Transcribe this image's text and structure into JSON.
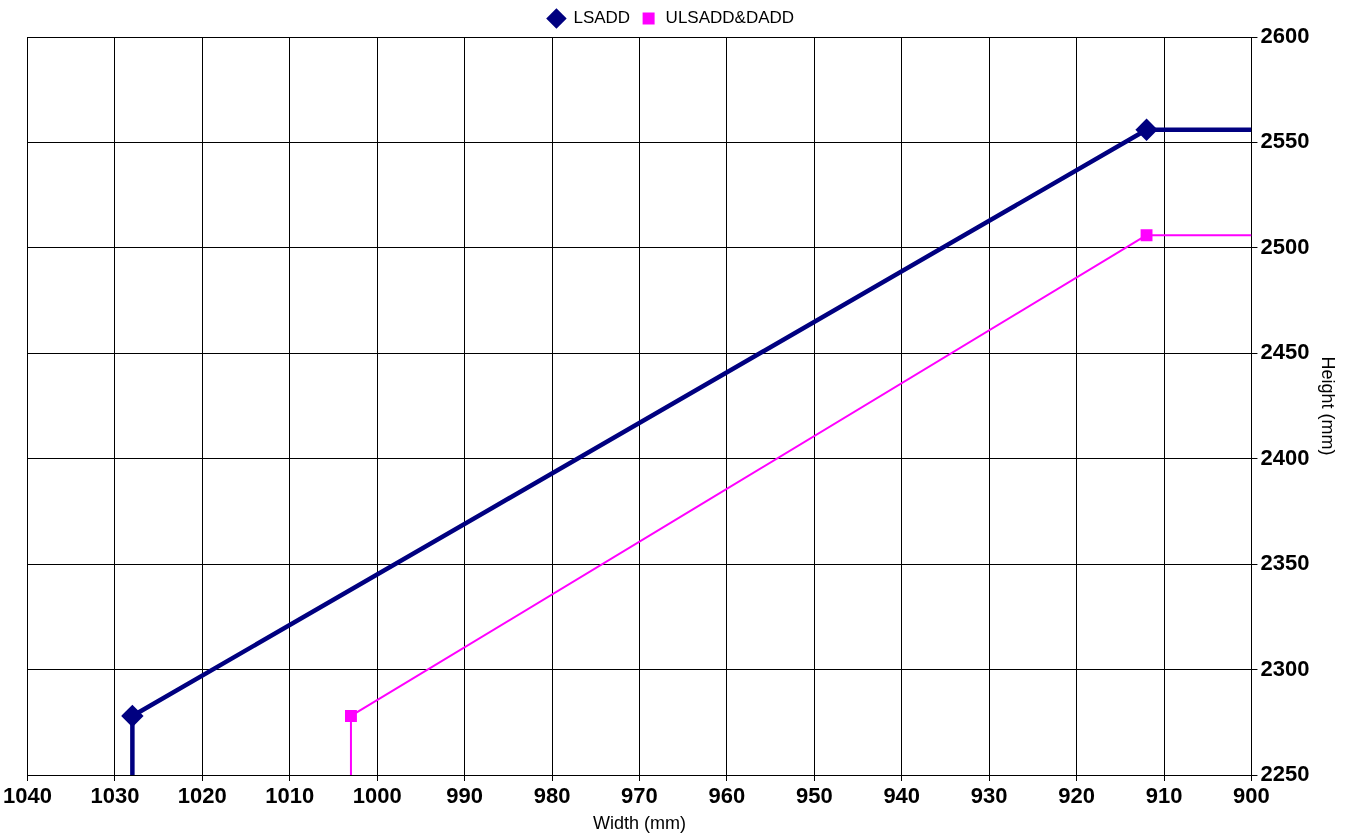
{
  "chart_data": {
    "type": "line",
    "xlabel": "Width (mm)",
    "ylabel": "Height (mm)",
    "xlim": [
      1040,
      900
    ],
    "xticks": [
      1040,
      1030,
      1020,
      1010,
      1000,
      990,
      980,
      970,
      960,
      950,
      940,
      930,
      920,
      910,
      900
    ],
    "ylim": [
      2250,
      2600
    ],
    "yticks": [
      2250,
      2300,
      2350,
      2400,
      2450,
      2500,
      2550,
      2600
    ],
    "grid": true,
    "legend": "top",
    "series": [
      {
        "name": "LSADD",
        "color": "#000080",
        "marker": "diamond",
        "x": [
          1028,
          1028,
          912,
          900
        ],
        "values": [
          2250,
          2278,
          2556,
          2556
        ]
      },
      {
        "name": "ULSADD&DADD",
        "color": "#ff00ff",
        "marker": "square",
        "x": [
          1003,
          1003,
          912,
          900
        ],
        "values": [
          2250,
          2278,
          2506,
          2506
        ]
      }
    ]
  }
}
